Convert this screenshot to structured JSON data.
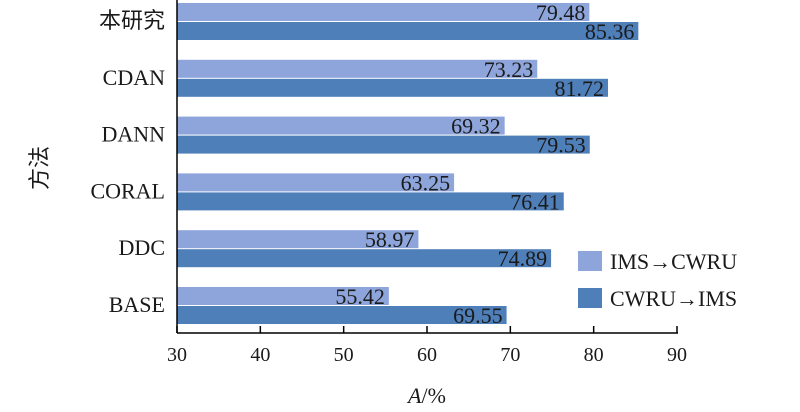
{
  "chart_data": {
    "type": "bar",
    "orientation": "horizontal",
    "categories": [
      "本研究",
      "CDAN",
      "DANN",
      "CORAL",
      "DDC",
      "BASE"
    ],
    "series": [
      {
        "name": "IMS→CWRU",
        "values": [
          79.48,
          73.23,
          69.32,
          63.25,
          58.97,
          55.42
        ],
        "color": "#8ea5dc"
      },
      {
        "name": "CWRU→IMS",
        "values": [
          85.36,
          81.72,
          79.53,
          76.41,
          74.89,
          69.55
        ],
        "color": "#4f7fb9"
      }
    ],
    "value_labels": [
      [
        "79.48",
        "73.23",
        "69.32",
        "63.25",
        "58.97",
        "55.42"
      ],
      [
        "85.36",
        "81.72",
        "79.53",
        "76.41",
        "74.89",
        "69.55"
      ]
    ],
    "xlabel_italic": "A",
    "xlabel_rest": "/%",
    "ylabel": "方法",
    "xlim": [
      30,
      90
    ],
    "xticks": [
      30,
      40,
      50,
      60,
      70,
      80,
      90
    ],
    "xtick_labels": [
      "30",
      "40",
      "50",
      "60",
      "70",
      "80",
      "90"
    ],
    "grid": false,
    "legend_position": "bottom-right"
  }
}
